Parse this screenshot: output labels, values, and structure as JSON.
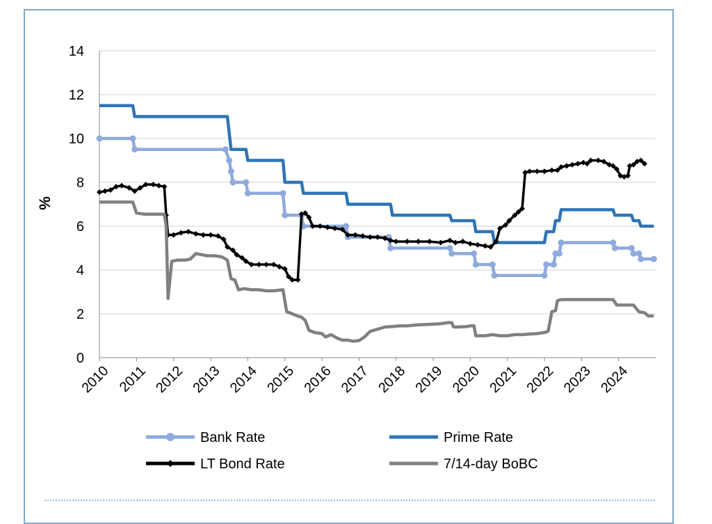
{
  "chart_data": {
    "type": "line",
    "ylabel": "%",
    "ylim": [
      0,
      14
    ],
    "yticks": [
      0,
      2,
      4,
      6,
      8,
      10,
      12,
      14
    ],
    "xlim": [
      2010,
      2025
    ],
    "xticks": [
      "2010",
      "2011",
      "2012",
      "2013",
      "2014",
      "2015",
      "2016",
      "2017",
      "2018",
      "2019",
      "2020",
      "2021",
      "2022",
      "2023",
      "2024"
    ],
    "grid": true,
    "legend_position": "bottom",
    "series": [
      {
        "name": "Bank Rate",
        "color": "#8faadc",
        "style": "step-markers",
        "points": [
          [
            2010,
            10
          ],
          [
            2010.9,
            10
          ],
          [
            2010.95,
            9.5
          ],
          [
            2013.4,
            9.5
          ],
          [
            2013.5,
            9
          ],
          [
            2013.55,
            8.5
          ],
          [
            2013.6,
            8
          ],
          [
            2013.95,
            8
          ],
          [
            2014.0,
            7.5
          ],
          [
            2014.95,
            7.5
          ],
          [
            2015.0,
            6.5
          ],
          [
            2015.45,
            6.5
          ],
          [
            2015.5,
            6
          ],
          [
            2016.65,
            6
          ],
          [
            2016.7,
            5.5
          ],
          [
            2017.8,
            5.5
          ],
          [
            2017.85,
            5
          ],
          [
            2019.45,
            5
          ],
          [
            2019.5,
            4.75
          ],
          [
            2020.1,
            4.75
          ],
          [
            2020.15,
            4.25
          ],
          [
            2020.6,
            4.25
          ],
          [
            2020.65,
            3.75
          ],
          [
            2022.0,
            3.75
          ],
          [
            2022.05,
            4.25
          ],
          [
            2022.25,
            4.25
          ],
          [
            2022.3,
            4.75
          ],
          [
            2022.4,
            4.75
          ],
          [
            2022.45,
            5.25
          ],
          [
            2023.85,
            5.25
          ],
          [
            2023.9,
            5
          ],
          [
            2024.35,
            5
          ],
          [
            2024.4,
            4.75
          ],
          [
            2024.55,
            4.75
          ],
          [
            2024.6,
            4.5
          ],
          [
            2024.95,
            4.5
          ]
        ]
      },
      {
        "name": "Prime Rate",
        "color": "#2e75b6",
        "style": "step",
        "points": [
          [
            2010,
            11.5
          ],
          [
            2010.9,
            11.5
          ],
          [
            2010.95,
            11
          ],
          [
            2013.45,
            11
          ],
          [
            2013.55,
            9.5
          ],
          [
            2013.95,
            9.5
          ],
          [
            2014.0,
            9
          ],
          [
            2014.95,
            9
          ],
          [
            2015.0,
            8
          ],
          [
            2015.45,
            8
          ],
          [
            2015.5,
            7.5
          ],
          [
            2016.65,
            7.5
          ],
          [
            2016.7,
            7
          ],
          [
            2017.85,
            7
          ],
          [
            2017.9,
            6.5
          ],
          [
            2019.45,
            6.5
          ],
          [
            2019.5,
            6.25
          ],
          [
            2020.1,
            6.25
          ],
          [
            2020.15,
            5.75
          ],
          [
            2020.6,
            5.75
          ],
          [
            2020.65,
            5.25
          ],
          [
            2022.0,
            5.25
          ],
          [
            2022.05,
            5.75
          ],
          [
            2022.25,
            5.75
          ],
          [
            2022.3,
            6.25
          ],
          [
            2022.4,
            6.25
          ],
          [
            2022.45,
            6.75
          ],
          [
            2023.85,
            6.75
          ],
          [
            2023.9,
            6.5
          ],
          [
            2024.35,
            6.5
          ],
          [
            2024.4,
            6.25
          ],
          [
            2024.55,
            6.25
          ],
          [
            2024.6,
            6
          ],
          [
            2024.95,
            6
          ]
        ]
      },
      {
        "name": "LT Bond Rate",
        "color": "#000000",
        "style": "line-markers",
        "points": [
          [
            2010,
            7.55
          ],
          [
            2010.15,
            7.6
          ],
          [
            2010.3,
            7.65
          ],
          [
            2010.45,
            7.8
          ],
          [
            2010.6,
            7.85
          ],
          [
            2010.8,
            7.75
          ],
          [
            2010.95,
            7.6
          ],
          [
            2011.1,
            7.75
          ],
          [
            2011.25,
            7.9
          ],
          [
            2011.45,
            7.9
          ],
          [
            2011.6,
            7.85
          ],
          [
            2011.75,
            7.8
          ],
          [
            2011.8,
            6.5
          ],
          [
            2011.85,
            5.6
          ],
          [
            2012.0,
            5.6
          ],
          [
            2012.2,
            5.7
          ],
          [
            2012.4,
            5.75
          ],
          [
            2012.6,
            5.65
          ],
          [
            2012.8,
            5.6
          ],
          [
            2013.0,
            5.6
          ],
          [
            2013.2,
            5.55
          ],
          [
            2013.35,
            5.4
          ],
          [
            2013.45,
            5.05
          ],
          [
            2013.6,
            4.9
          ],
          [
            2013.7,
            4.7
          ],
          [
            2013.85,
            4.55
          ],
          [
            2013.95,
            4.4
          ],
          [
            2014.1,
            4.25
          ],
          [
            2014.3,
            4.25
          ],
          [
            2014.5,
            4.25
          ],
          [
            2014.7,
            4.25
          ],
          [
            2014.85,
            4.15
          ],
          [
            2015.0,
            4.05
          ],
          [
            2015.1,
            3.7
          ],
          [
            2015.2,
            3.55
          ],
          [
            2015.35,
            3.55
          ],
          [
            2015.45,
            6.55
          ],
          [
            2015.55,
            6.6
          ],
          [
            2015.65,
            6.4
          ],
          [
            2015.75,
            6.0
          ],
          [
            2015.95,
            6.0
          ],
          [
            2016.15,
            5.95
          ],
          [
            2016.35,
            5.9
          ],
          [
            2016.55,
            5.85
          ],
          [
            2016.7,
            5.6
          ],
          [
            2016.9,
            5.6
          ],
          [
            2017.1,
            5.55
          ],
          [
            2017.3,
            5.5
          ],
          [
            2017.5,
            5.5
          ],
          [
            2017.7,
            5.45
          ],
          [
            2017.85,
            5.35
          ],
          [
            2018.0,
            5.3
          ],
          [
            2018.3,
            5.3
          ],
          [
            2018.6,
            5.3
          ],
          [
            2018.9,
            5.3
          ],
          [
            2019.2,
            5.25
          ],
          [
            2019.45,
            5.35
          ],
          [
            2019.6,
            5.25
          ],
          [
            2019.8,
            5.3
          ],
          [
            2020.0,
            5.2
          ],
          [
            2020.2,
            5.15
          ],
          [
            2020.4,
            5.1
          ],
          [
            2020.55,
            5.05
          ],
          [
            2020.7,
            5.3
          ],
          [
            2020.8,
            5.9
          ],
          [
            2020.95,
            6.05
          ],
          [
            2021.05,
            6.25
          ],
          [
            2021.2,
            6.5
          ],
          [
            2021.3,
            6.65
          ],
          [
            2021.4,
            6.8
          ],
          [
            2021.48,
            8.45
          ],
          [
            2021.6,
            8.5
          ],
          [
            2021.8,
            8.5
          ],
          [
            2022.0,
            8.5
          ],
          [
            2022.2,
            8.55
          ],
          [
            2022.35,
            8.55
          ],
          [
            2022.45,
            8.7
          ],
          [
            2022.6,
            8.75
          ],
          [
            2022.75,
            8.8
          ],
          [
            2022.9,
            8.85
          ],
          [
            2023.05,
            8.9
          ],
          [
            2023.15,
            8.85
          ],
          [
            2023.25,
            9.0
          ],
          [
            2023.45,
            9.0
          ],
          [
            2023.6,
            8.95
          ],
          [
            2023.75,
            8.8
          ],
          [
            2023.85,
            8.75
          ],
          [
            2023.95,
            8.6
          ],
          [
            2024.05,
            8.3
          ],
          [
            2024.15,
            8.25
          ],
          [
            2024.25,
            8.3
          ],
          [
            2024.3,
            8.75
          ],
          [
            2024.4,
            8.8
          ],
          [
            2024.5,
            8.95
          ],
          [
            2024.6,
            9.0
          ],
          [
            2024.7,
            8.85
          ]
        ]
      },
      {
        "name": "7/14-day BoBC",
        "color": "#808080",
        "style": "line",
        "points": [
          [
            2010,
            7.1
          ],
          [
            2010.5,
            7.1
          ],
          [
            2010.9,
            7.1
          ],
          [
            2011.0,
            6.6
          ],
          [
            2011.2,
            6.55
          ],
          [
            2011.5,
            6.55
          ],
          [
            2011.75,
            6.55
          ],
          [
            2011.8,
            6.0
          ],
          [
            2011.85,
            2.7
          ],
          [
            2011.95,
            4.4
          ],
          [
            2012.1,
            4.45
          ],
          [
            2012.3,
            4.45
          ],
          [
            2012.45,
            4.5
          ],
          [
            2012.6,
            4.75
          ],
          [
            2012.75,
            4.7
          ],
          [
            2012.9,
            4.65
          ],
          [
            2013.1,
            4.65
          ],
          [
            2013.3,
            4.6
          ],
          [
            2013.45,
            4.45
          ],
          [
            2013.55,
            3.6
          ],
          [
            2013.65,
            3.55
          ],
          [
            2013.75,
            3.1
          ],
          [
            2013.9,
            3.15
          ],
          [
            2014.1,
            3.1
          ],
          [
            2014.3,
            3.1
          ],
          [
            2014.5,
            3.05
          ],
          [
            2014.7,
            3.05
          ],
          [
            2014.95,
            3.1
          ],
          [
            2015.05,
            2.1
          ],
          [
            2015.2,
            2.0
          ],
          [
            2015.35,
            1.9
          ],
          [
            2015.45,
            1.85
          ],
          [
            2015.55,
            1.7
          ],
          [
            2015.65,
            1.25
          ],
          [
            2015.8,
            1.15
          ],
          [
            2016.0,
            1.1
          ],
          [
            2016.1,
            0.95
          ],
          [
            2016.25,
            1.05
          ],
          [
            2016.4,
            0.9
          ],
          [
            2016.55,
            0.8
          ],
          [
            2016.7,
            0.8
          ],
          [
            2016.85,
            0.75
          ],
          [
            2017.0,
            0.78
          ],
          [
            2017.15,
            0.95
          ],
          [
            2017.3,
            1.2
          ],
          [
            2017.5,
            1.3
          ],
          [
            2017.7,
            1.4
          ],
          [
            2017.9,
            1.42
          ],
          [
            2018.1,
            1.45
          ],
          [
            2018.3,
            1.45
          ],
          [
            2018.6,
            1.5
          ],
          [
            2018.9,
            1.52
          ],
          [
            2019.2,
            1.55
          ],
          [
            2019.4,
            1.6
          ],
          [
            2019.5,
            1.6
          ],
          [
            2019.55,
            1.4
          ],
          [
            2019.7,
            1.4
          ],
          [
            2019.9,
            1.42
          ],
          [
            2020.0,
            1.45
          ],
          [
            2020.1,
            1.45
          ],
          [
            2020.15,
            1.0
          ],
          [
            2020.4,
            1.0
          ],
          [
            2020.6,
            1.05
          ],
          [
            2020.8,
            1.0
          ],
          [
            2021.0,
            1.0
          ],
          [
            2021.2,
            1.05
          ],
          [
            2021.4,
            1.05
          ],
          [
            2021.6,
            1.08
          ],
          [
            2021.8,
            1.1
          ],
          [
            2022.0,
            1.15
          ],
          [
            2022.1,
            1.2
          ],
          [
            2022.2,
            2.1
          ],
          [
            2022.3,
            2.15
          ],
          [
            2022.35,
            2.6
          ],
          [
            2022.45,
            2.65
          ],
          [
            2022.7,
            2.65
          ],
          [
            2023.0,
            2.65
          ],
          [
            2023.5,
            2.65
          ],
          [
            2023.85,
            2.65
          ],
          [
            2023.95,
            2.4
          ],
          [
            2024.2,
            2.4
          ],
          [
            2024.4,
            2.4
          ],
          [
            2024.55,
            2.1
          ],
          [
            2024.7,
            2.05
          ],
          [
            2024.8,
            1.9
          ],
          [
            2024.95,
            1.9
          ]
        ]
      }
    ]
  }
}
